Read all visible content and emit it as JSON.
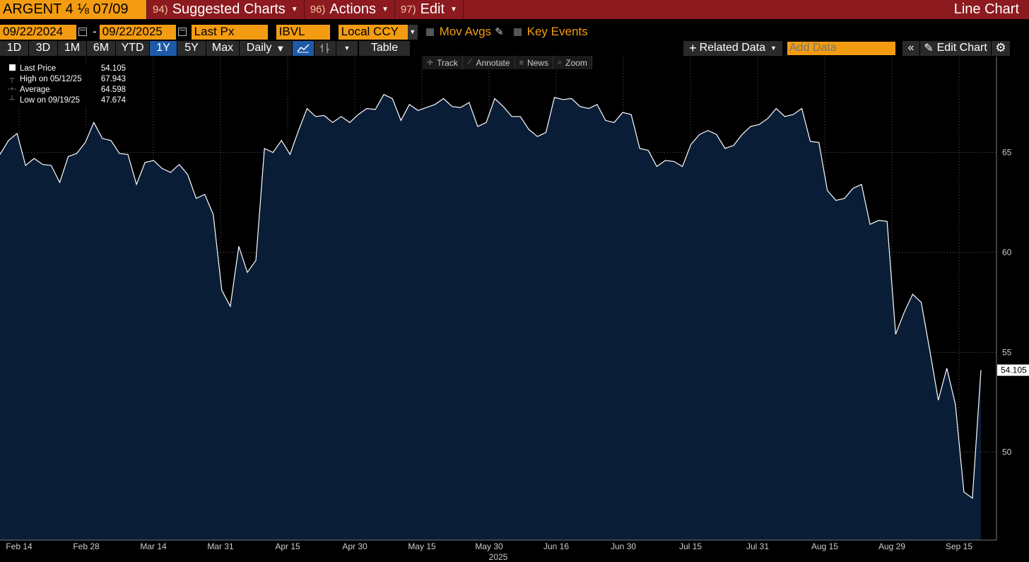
{
  "header": {
    "ticker": "ARGENT 4 ⅛ 07/09",
    "menus": [
      {
        "num": "94)",
        "label": "Suggested Charts"
      },
      {
        "num": "96)",
        "label": "Actions"
      },
      {
        "num": "97)",
        "label": "Edit"
      }
    ],
    "title": "Line Chart"
  },
  "controls": {
    "start_date": "09/22/2024",
    "end_date": "09/22/2025",
    "field": "Last Px",
    "source": "IBVL",
    "currency": "Local CCY",
    "mov_avgs": "Mov Avgs",
    "key_events": "Key Events"
  },
  "periods": [
    "1D",
    "3D",
    "1M",
    "6M",
    "YTD",
    "1Y",
    "5Y",
    "Max"
  ],
  "active_period": "1Y",
  "frequency": "Daily",
  "table_label": "Table",
  "related_data": "Related Data",
  "add_data_placeholder": "Add Data",
  "edit_chart": "Edit Chart",
  "tools": {
    "track": "Track",
    "annotate": "Annotate",
    "news": "News",
    "zoom": "Zoom"
  },
  "legend": {
    "last": {
      "name": "Last Price",
      "value": "54.105"
    },
    "high": {
      "name": "High on 05/12/25",
      "value": "67.943"
    },
    "avg": {
      "name": "Average",
      "value": "64.598"
    },
    "low": {
      "name": "Low on 09/19/25",
      "value": "47.674"
    }
  },
  "last_tag": "54.105",
  "colors": {
    "accent_orange": "#f39c12",
    "top_bar": "#8c1a1f",
    "area_fill": "#0b1f3b",
    "line": "#ffffff",
    "active_button": "#1e5aa8"
  },
  "chart_data": {
    "type": "area",
    "title": "",
    "xlabel": "2025",
    "ylabel": "",
    "ylim": [
      45.6,
      69.8
    ],
    "y_ticks": [
      50,
      55,
      60,
      65
    ],
    "x_tick_labels": [
      "Feb 14",
      "Feb 28",
      "Mar 14",
      "Mar 31",
      "Apr 15",
      "Apr 30",
      "May 15",
      "May 30",
      "Jun 16",
      "Jun 30",
      "Jul 15",
      "Jul 31",
      "Aug 15",
      "Aug 29",
      "Sep 15"
    ],
    "grid": true,
    "series": [
      {
        "values": [
          64.9,
          65.6,
          65.95,
          64.35,
          64.7,
          64.4,
          64.35,
          63.5,
          64.8,
          64.95,
          65.5,
          66.5,
          65.7,
          65.6,
          64.95,
          64.9,
          63.4,
          64.5,
          64.6,
          64.2,
          64.0,
          64.4,
          63.9,
          62.7,
          62.9,
          61.9,
          58.1,
          57.3,
          60.3,
          59.0,
          59.6,
          65.2,
          65.0,
          65.6,
          64.9,
          66.1,
          67.2,
          66.8,
          66.85,
          66.5,
          66.8,
          66.5,
          66.9,
          67.2,
          67.15,
          67.9,
          67.7,
          66.6,
          67.4,
          67.1,
          67.25,
          67.4,
          67.7,
          67.3,
          67.25,
          67.5,
          66.3,
          66.5,
          67.7,
          67.3,
          66.8,
          66.8,
          66.15,
          65.8,
          66.0,
          67.75,
          67.65,
          67.7,
          67.3,
          67.2,
          67.4,
          66.6,
          66.5,
          67.0,
          66.9,
          65.2,
          65.1,
          64.3,
          64.6,
          64.55,
          64.3,
          65.4,
          65.9,
          66.1,
          65.9,
          65.2,
          65.35,
          65.9,
          66.3,
          66.4,
          66.7,
          67.2,
          66.8,
          66.9,
          67.2,
          65.55,
          65.5,
          63.1,
          62.6,
          62.7,
          63.2,
          63.4,
          61.4,
          61.6,
          61.55,
          55.9,
          57.0,
          57.9,
          57.5,
          55.1,
          52.6,
          54.2,
          52.4,
          48.0,
          47.7,
          54.105
        ]
      }
    ]
  }
}
